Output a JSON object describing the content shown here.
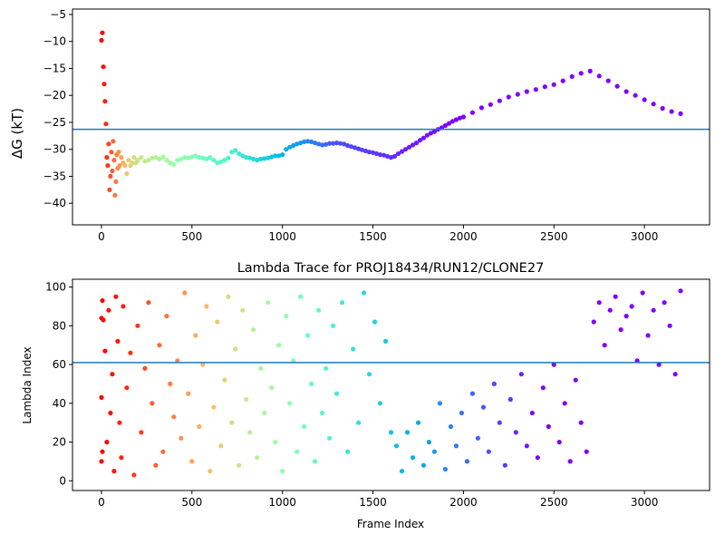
{
  "chart_data": [
    {
      "type": "scatter",
      "title": "",
      "xlabel": "",
      "ylabel": "ΔG (kT)",
      "xlim": [
        -160,
        3360
      ],
      "ylim": [
        -44,
        -4
      ],
      "xticks": [
        0,
        500,
        1000,
        1500,
        2000,
        2500,
        3000
      ],
      "yticks": [
        -40,
        -35,
        -30,
        -25,
        -20,
        -15,
        -10,
        -5
      ],
      "hline": -26.3,
      "grid": false,
      "legend": "none",
      "colormap": "rainbow (frame index 0 red → 3200 purple)",
      "series": [
        {
          "points_x": [
            0,
            5,
            10,
            15,
            20,
            25,
            30,
            35,
            40,
            45,
            50,
            55,
            60,
            65,
            70,
            75,
            80,
            85,
            90,
            95,
            100,
            110,
            120,
            130,
            140,
            150,
            160,
            170,
            180,
            190,
            200,
            220,
            240,
            260,
            280,
            300,
            320,
            340,
            360,
            380,
            400,
            420,
            440,
            460,
            480,
            500,
            520,
            540,
            560,
            580,
            600,
            620,
            640,
            660,
            680,
            700,
            720,
            740,
            760,
            780,
            800,
            820,
            840,
            860,
            880,
            900,
            920,
            940,
            960,
            980,
            1000,
            1020,
            1040,
            1060,
            1080,
            1100,
            1120,
            1140,
            1160,
            1180,
            1200,
            1220,
            1240,
            1260,
            1280,
            1300,
            1320,
            1340,
            1360,
            1380,
            1400,
            1420,
            1440,
            1460,
            1480,
            1500,
            1520,
            1540,
            1560,
            1580,
            1600,
            1620,
            1640,
            1660,
            1680,
            1700,
            1720,
            1740,
            1760,
            1780,
            1800,
            1820,
            1840,
            1860,
            1880,
            1900,
            1920,
            1940,
            1960,
            1980,
            2000,
            2050,
            2100,
            2150,
            2200,
            2250,
            2300,
            2350,
            2400,
            2450,
            2500,
            2550,
            2600,
            2650,
            2700,
            2750,
            2800,
            2850,
            2900,
            2950,
            3000,
            3050,
            3100,
            3150,
            3200
          ],
          "points_y": [
            -9.8,
            -8.4,
            -14.7,
            -17.9,
            -21.1,
            -25.3,
            -31.5,
            -33.0,
            -29.0,
            -37.5,
            -35.0,
            -30.5,
            -34.0,
            -28.5,
            -32.0,
            -38.5,
            -36.0,
            -31.0,
            -33.5,
            -30.5,
            -33.0,
            -31.5,
            -32.5,
            -33.0,
            -34.5,
            -32.0,
            -33.0,
            -32.5,
            -31.5,
            -32.5,
            -32.0,
            -31.5,
            -32.2,
            -32.0,
            -31.6,
            -31.5,
            -31.8,
            -31.4,
            -32.0,
            -32.5,
            -32.8,
            -32.0,
            -31.8,
            -31.5,
            -31.6,
            -31.4,
            -31.2,
            -31.5,
            -31.6,
            -31.8,
            -31.5,
            -32.0,
            -32.5,
            -32.3,
            -32.0,
            -31.6,
            -30.5,
            -30.2,
            -30.8,
            -31.2,
            -31.5,
            -31.6,
            -31.8,
            -32.0,
            -31.8,
            -31.7,
            -31.6,
            -31.4,
            -31.2,
            -31.2,
            -31.0,
            -30.0,
            -29.6,
            -29.3,
            -29.0,
            -28.8,
            -28.6,
            -28.5,
            -28.6,
            -28.8,
            -29.0,
            -29.2,
            -29.1,
            -28.9,
            -28.9,
            -28.8,
            -28.9,
            -29.0,
            -29.3,
            -29.5,
            -29.7,
            -29.9,
            -30.1,
            -30.3,
            -30.5,
            -30.6,
            -30.8,
            -31.0,
            -31.1,
            -31.3,
            -31.5,
            -31.3,
            -30.8,
            -30.4,
            -30.0,
            -29.6,
            -29.2,
            -28.8,
            -28.3,
            -27.9,
            -27.4,
            -27.0,
            -26.7,
            -26.3,
            -26.0,
            -25.6,
            -25.2,
            -24.8,
            -24.5,
            -24.2,
            -24.0,
            -23.2,
            -22.3,
            -21.7,
            -21.0,
            -20.3,
            -19.8,
            -19.3,
            -18.9,
            -18.4,
            -18.0,
            -17.3,
            -16.5,
            -15.9,
            -15.5,
            -16.4,
            -17.3,
            -18.3,
            -19.3,
            -20.0,
            -20.8,
            -21.6,
            -22.4,
            -23.0,
            -23.4
          ],
          "points_color_t": [
            0.0,
            0.0,
            0.02,
            0.03,
            0.04,
            0.05,
            0.06,
            0.07,
            0.08,
            0.09,
            0.1,
            0.11,
            0.12,
            0.13,
            0.14,
            0.15,
            0.16,
            0.17,
            0.18,
            0.19,
            0.2,
            0.22,
            0.24,
            0.26,
            0.28,
            0.3,
            0.31,
            0.32,
            0.33,
            0.34,
            0.35,
            0.36,
            0.37,
            0.38,
            0.39,
            0.4,
            0.41,
            0.42,
            0.43,
            0.44,
            0.45,
            0.46,
            0.47,
            0.48,
            0.49,
            0.5,
            0.51,
            0.52,
            0.53,
            0.54,
            0.55,
            0.56,
            0.57,
            0.58,
            0.59,
            0.6,
            0.61,
            0.62,
            0.63,
            0.64,
            0.65,
            0.66,
            0.67,
            0.68,
            0.69,
            0.7,
            0.71,
            0.72,
            0.73,
            0.74,
            0.75,
            0.76,
            0.77,
            0.78,
            0.79,
            0.8,
            0.81,
            0.82,
            0.83,
            0.84,
            0.85,
            0.86,
            0.87,
            0.88,
            0.89,
            0.9,
            0.9,
            0.9,
            0.91,
            0.91,
            0.91,
            0.92,
            0.92,
            0.92,
            0.93,
            0.93,
            0.93,
            0.94,
            0.94,
            0.94,
            0.95,
            0.95,
            0.95,
            0.96,
            0.96,
            0.96,
            0.97,
            0.97,
            0.97,
            0.98,
            0.98,
            0.98,
            0.99,
            0.99,
            0.99,
            1.0,
            1.0,
            1.0,
            1.0,
            1.0,
            1.0,
            1.0,
            1.0,
            1.0,
            1.0,
            1.0,
            1.0,
            1.0,
            1.0,
            1.0,
            1.0,
            1.0,
            1.0,
            1.0,
            1.0,
            1.0,
            1.0,
            1.0,
            1.0,
            1.0,
            1.0,
            1.0,
            1.0,
            1.0,
            1.0
          ]
        }
      ]
    },
    {
      "type": "scatter",
      "title": "Lambda Trace for PROJ18434/RUN12/CLONE27",
      "xlabel": "Frame Index",
      "ylabel": "Lambda Index",
      "xlim": [
        -160,
        3360
      ],
      "ylim": [
        -5,
        104
      ],
      "xticks": [
        0,
        500,
        1000,
        1500,
        2000,
        2500,
        3000
      ],
      "yticks": [
        0,
        20,
        40,
        60,
        80,
        100
      ],
      "hline": 61,
      "grid": false,
      "legend": "none",
      "colormap": "rainbow (frame index 0 red → 3200 purple)",
      "series": [
        {
          "points_x": [
            0,
            0,
            0,
            5,
            5,
            10,
            20,
            30,
            40,
            50,
            60,
            70,
            80,
            90,
            100,
            110,
            120,
            140,
            160,
            180,
            200,
            220,
            240,
            260,
            280,
            300,
            320,
            340,
            360,
            380,
            400,
            420,
            440,
            460,
            480,
            500,
            520,
            540,
            560,
            580,
            600,
            620,
            640,
            660,
            680,
            700,
            720,
            740,
            760,
            780,
            800,
            820,
            840,
            860,
            880,
            900,
            920,
            940,
            960,
            980,
            1000,
            1020,
            1040,
            1060,
            1080,
            1100,
            1120,
            1140,
            1160,
            1180,
            1200,
            1220,
            1240,
            1260,
            1280,
            1300,
            1330,
            1360,
            1390,
            1420,
            1450,
            1480,
            1510,
            1540,
            1570,
            1600,
            1630,
            1660,
            1690,
            1720,
            1750,
            1780,
            1810,
            1840,
            1870,
            1900,
            1930,
            1960,
            1990,
            2020,
            2050,
            2080,
            2110,
            2140,
            2170,
            2200,
            2230,
            2260,
            2290,
            2320,
            2350,
            2380,
            2410,
            2440,
            2470,
            2500,
            2530,
            2560,
            2590,
            2620,
            2650,
            2680,
            2720,
            2750,
            2780,
            2810,
            2840,
            2870,
            2900,
            2930,
            2960,
            2990,
            3020,
            3050,
            3080,
            3110,
            3140,
            3170,
            3200
          ],
          "points_y": [
            84,
            43,
            10,
            93,
            15,
            83,
            67,
            20,
            88,
            35,
            55,
            5,
            95,
            72,
            30,
            12,
            90,
            48,
            66,
            3,
            80,
            25,
            58,
            92,
            40,
            8,
            70,
            15,
            85,
            50,
            33,
            62,
            22,
            97,
            45,
            10,
            75,
            28,
            60,
            90,
            5,
            38,
            82,
            18,
            52,
            95,
            30,
            68,
            8,
            88,
            42,
            25,
            78,
            12,
            58,
            35,
            92,
            48,
            20,
            70,
            5,
            85,
            40,
            62,
            15,
            95,
            28,
            75,
            50,
            10,
            88,
            35,
            58,
            22,
            80,
            45,
            92,
            15,
            68,
            30,
            97,
            55,
            82,
            40,
            72,
            25,
            18,
            5,
            25,
            12,
            30,
            8,
            20,
            15,
            40,
            6,
            28,
            18,
            35,
            10,
            45,
            22,
            38,
            15,
            50,
            30,
            8,
            42,
            25,
            55,
            18,
            35,
            12,
            48,
            28,
            60,
            20,
            40,
            10,
            52,
            30,
            15,
            82,
            92,
            70,
            88,
            95,
            78,
            85,
            90,
            62,
            97,
            75,
            88,
            60,
            92,
            80,
            55,
            98
          ],
          "points_color_t": [
            0.0,
            0.0,
            0.0,
            0.0,
            0.0,
            0.01,
            0.01,
            0.01,
            0.02,
            0.02,
            0.02,
            0.03,
            0.03,
            0.03,
            0.04,
            0.04,
            0.04,
            0.05,
            0.06,
            0.07,
            0.07,
            0.08,
            0.09,
            0.1,
            0.11,
            0.12,
            0.13,
            0.14,
            0.15,
            0.16,
            0.17,
            0.18,
            0.19,
            0.2,
            0.21,
            0.22,
            0.23,
            0.24,
            0.25,
            0.26,
            0.27,
            0.28,
            0.29,
            0.3,
            0.31,
            0.32,
            0.33,
            0.34,
            0.35,
            0.36,
            0.37,
            0.38,
            0.39,
            0.4,
            0.41,
            0.42,
            0.43,
            0.44,
            0.45,
            0.46,
            0.47,
            0.48,
            0.49,
            0.5,
            0.51,
            0.52,
            0.53,
            0.54,
            0.55,
            0.56,
            0.57,
            0.58,
            0.59,
            0.6,
            0.61,
            0.62,
            0.63,
            0.64,
            0.65,
            0.66,
            0.67,
            0.68,
            0.69,
            0.7,
            0.71,
            0.72,
            0.73,
            0.74,
            0.75,
            0.76,
            0.77,
            0.78,
            0.79,
            0.8,
            0.81,
            0.82,
            0.83,
            0.84,
            0.85,
            0.86,
            0.87,
            0.88,
            0.89,
            0.9,
            0.91,
            0.92,
            0.93,
            0.94,
            0.95,
            0.96,
            0.97,
            0.98,
            0.99,
            1.0,
            1.0,
            1.0,
            1.0,
            1.0,
            1.0,
            1.0,
            1.0,
            1.0,
            1.0,
            1.0,
            1.0,
            1.0,
            1.0,
            1.0,
            1.0,
            1.0,
            1.0,
            1.0,
            1.0,
            1.0,
            1.0,
            1.0,
            1.0,
            1.0,
            1.0,
            1.0,
            1.0
          ]
        }
      ],
      "notes_bands": "Points fill 0–100 broadly for frames 0–1650; frames ~1650–2700 mostly 0–60; frames ~2700–3200 mostly 55–100."
    }
  ],
  "colors": {
    "hline": "#1f77b4",
    "axes": "#000000",
    "background": "#ffffff"
  }
}
